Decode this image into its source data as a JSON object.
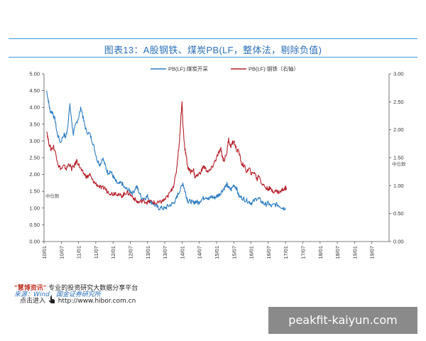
{
  "title": "图表13：A股钢铁、煤炭PB(LF，整体法，剔除负值)",
  "chart_data": {
    "type": "line",
    "title": "图表13：A股钢铁、煤炭PB(LF，整体法，剔除负值)",
    "x_labels": [
      "10/01",
      "10/07",
      "11/01",
      "11/07",
      "12/01",
      "12/07",
      "13/01",
      "13/07",
      "14/01",
      "14/07",
      "15/01",
      "15/07",
      "16/01",
      "16/07",
      "17/01",
      "17/07",
      "18/01",
      "18/07",
      "19/01",
      "19/07"
    ],
    "y_left": {
      "range": [
        0,
        5
      ],
      "ticks": [
        "0.00",
        "0.50",
        "1.00",
        "1.50",
        "2.00",
        "2.50",
        "3.00",
        "3.50",
        "4.00",
        "4.50",
        "5.00"
      ]
    },
    "y_right": {
      "range": [
        0,
        3
      ],
      "ticks": [
        "0.00",
        "0.50",
        "1.00",
        "1.50",
        "2.00",
        "2.50",
        "3.00"
      ]
    },
    "annotations": [
      "中位数",
      "中位数"
    ],
    "series": [
      {
        "name": "PB(LF):煤炭开采",
        "axis": "left",
        "color": "#2b7bbf",
        "points": [
          [
            0,
            4.5
          ],
          [
            0.1,
            4.2
          ],
          [
            0.2,
            3.9
          ],
          [
            0.35,
            3.85
          ],
          [
            0.5,
            3.6
          ],
          [
            0.6,
            3.25
          ],
          [
            0.8,
            2.95
          ],
          [
            1.0,
            3.2
          ],
          [
            1.1,
            3.1
          ],
          [
            1.2,
            3.35
          ],
          [
            1.35,
            4.05
          ],
          [
            1.45,
            3.6
          ],
          [
            1.55,
            3.2
          ],
          [
            1.7,
            3.5
          ],
          [
            1.85,
            3.7
          ],
          [
            2.0,
            4.0
          ],
          [
            2.15,
            3.6
          ],
          [
            2.3,
            3.3
          ],
          [
            2.5,
            3.2
          ],
          [
            2.65,
            3.0
          ],
          [
            2.8,
            2.7
          ],
          [
            2.95,
            2.4
          ],
          [
            3.1,
            2.3
          ],
          [
            3.25,
            2.5
          ],
          [
            3.4,
            2.25
          ],
          [
            3.55,
            2.05
          ],
          [
            3.7,
            2.1
          ],
          [
            3.85,
            1.95
          ],
          [
            4.0,
            1.8
          ],
          [
            4.15,
            1.7
          ],
          [
            4.35,
            1.75
          ],
          [
            4.5,
            1.6
          ],
          [
            4.7,
            1.55
          ],
          [
            4.85,
            1.5
          ],
          [
            5.0,
            1.45
          ],
          [
            5.2,
            1.65
          ],
          [
            5.3,
            1.55
          ],
          [
            5.5,
            1.3
          ],
          [
            5.7,
            1.3
          ],
          [
            5.85,
            1.35
          ],
          [
            6.0,
            1.2
          ],
          [
            6.15,
            1.15
          ],
          [
            6.35,
            1.05
          ],
          [
            6.5,
            1.0
          ],
          [
            6.7,
            1.0
          ],
          [
            6.85,
            0.98
          ],
          [
            7.0,
            1.05
          ],
          [
            7.2,
            1.1
          ],
          [
            7.35,
            1.15
          ],
          [
            7.5,
            1.25
          ],
          [
            7.6,
            1.4
          ],
          [
            7.75,
            1.55
          ],
          [
            7.9,
            1.75
          ],
          [
            8.0,
            1.55
          ],
          [
            8.1,
            1.35
          ],
          [
            8.2,
            1.2
          ],
          [
            8.35,
            1.2
          ],
          [
            8.5,
            1.15
          ],
          [
            8.65,
            1.2
          ],
          [
            8.8,
            1.15
          ],
          [
            8.95,
            1.25
          ],
          [
            9.1,
            1.3
          ],
          [
            9.25,
            1.35
          ],
          [
            9.4,
            1.25
          ],
          [
            9.55,
            1.35
          ],
          [
            9.7,
            1.3
          ],
          [
            9.85,
            1.35
          ],
          [
            10.0,
            1.4
          ],
          [
            10.15,
            1.5
          ],
          [
            10.3,
            1.6
          ],
          [
            10.45,
            1.7
          ],
          [
            10.55,
            1.6
          ],
          [
            10.7,
            1.55
          ],
          [
            10.85,
            1.7
          ],
          [
            11.0,
            1.6
          ],
          [
            11.15,
            1.35
          ],
          [
            11.35,
            1.3
          ],
          [
            11.5,
            1.25
          ],
          [
            11.7,
            1.2
          ],
          [
            11.85,
            1.15
          ],
          [
            12.0,
            1.2
          ],
          [
            12.2,
            1.3
          ],
          [
            12.35,
            1.25
          ],
          [
            12.55,
            1.15
          ],
          [
            12.7,
            1.1
          ],
          [
            12.85,
            1.15
          ],
          [
            13.0,
            1.05
          ],
          [
            13.2,
            1.1
          ],
          [
            13.4,
            1.1
          ],
          [
            13.55,
            1.05
          ],
          [
            13.7,
            1.0
          ],
          [
            13.85,
            1.0
          ]
        ]
      },
      {
        "name": "PB(LF):钢铁（右轴）",
        "axis": "right",
        "color": "#b3202a",
        "points": [
          [
            0,
            2.0
          ],
          [
            0.1,
            1.8
          ],
          [
            0.25,
            1.65
          ],
          [
            0.4,
            1.7
          ],
          [
            0.55,
            1.55
          ],
          [
            0.7,
            1.35
          ],
          [
            0.85,
            1.3
          ],
          [
            1.0,
            1.35
          ],
          [
            1.15,
            1.3
          ],
          [
            1.3,
            1.4
          ],
          [
            1.45,
            1.3
          ],
          [
            1.6,
            1.35
          ],
          [
            1.75,
            1.45
          ],
          [
            1.9,
            1.35
          ],
          [
            2.05,
            1.25
          ],
          [
            2.2,
            1.2
          ],
          [
            2.35,
            1.15
          ],
          [
            2.5,
            1.2
          ],
          [
            2.65,
            1.1
          ],
          [
            2.8,
            1.05
          ],
          [
            3.0,
            1.0
          ],
          [
            3.2,
            0.95
          ],
          [
            3.35,
            0.97
          ],
          [
            3.5,
            0.9
          ],
          [
            3.7,
            0.87
          ],
          [
            3.85,
            0.85
          ],
          [
            4.0,
            0.88
          ],
          [
            4.15,
            0.83
          ],
          [
            4.35,
            0.82
          ],
          [
            4.5,
            0.85
          ],
          [
            4.65,
            0.88
          ],
          [
            4.8,
            0.85
          ],
          [
            5.0,
            0.8
          ],
          [
            5.2,
            0.72
          ],
          [
            5.35,
            0.7
          ],
          [
            5.55,
            0.73
          ],
          [
            5.7,
            0.72
          ],
          [
            5.85,
            0.7
          ],
          [
            6.0,
            0.72
          ],
          [
            6.2,
            0.7
          ],
          [
            6.35,
            0.68
          ],
          [
            6.55,
            0.7
          ],
          [
            6.7,
            0.72
          ],
          [
            6.85,
            0.75
          ],
          [
            7.0,
            0.8
          ],
          [
            7.2,
            0.9
          ],
          [
            7.35,
            1.0
          ],
          [
            7.5,
            1.2
          ],
          [
            7.6,
            1.5
          ],
          [
            7.7,
            1.8
          ],
          [
            7.8,
            2.3
          ],
          [
            7.85,
            2.5
          ],
          [
            7.9,
            2.1
          ],
          [
            8.0,
            1.7
          ],
          [
            8.1,
            1.5
          ],
          [
            8.2,
            1.3
          ],
          [
            8.35,
            1.25
          ],
          [
            8.5,
            1.3
          ],
          [
            8.6,
            1.15
          ],
          [
            8.8,
            1.2
          ],
          [
            8.95,
            1.25
          ],
          [
            9.1,
            1.35
          ],
          [
            9.25,
            1.28
          ],
          [
            9.4,
            1.25
          ],
          [
            9.55,
            1.3
          ],
          [
            9.7,
            1.4
          ],
          [
            9.85,
            1.5
          ],
          [
            10.0,
            1.6
          ],
          [
            10.1,
            1.65
          ],
          [
            10.2,
            1.5
          ],
          [
            10.3,
            1.45
          ],
          [
            10.45,
            1.6
          ],
          [
            10.55,
            1.85
          ],
          [
            10.65,
            1.7
          ],
          [
            10.75,
            1.75
          ],
          [
            10.85,
            1.8
          ],
          [
            11.0,
            1.65
          ],
          [
            11.15,
            1.6
          ],
          [
            11.3,
            1.4
          ],
          [
            11.45,
            1.35
          ],
          [
            11.6,
            1.25
          ],
          [
            11.75,
            1.3
          ],
          [
            11.9,
            1.2
          ],
          [
            12.05,
            1.25
          ],
          [
            12.2,
            1.1
          ],
          [
            12.3,
            1.2
          ],
          [
            12.45,
            1.05
          ],
          [
            12.6,
            1.0
          ],
          [
            12.75,
            0.95
          ],
          [
            12.9,
            0.95
          ],
          [
            13.05,
            0.92
          ],
          [
            13.2,
            0.9
          ],
          [
            13.35,
            0.9
          ],
          [
            13.5,
            0.88
          ],
          [
            13.65,
            0.92
          ],
          [
            13.8,
            0.95
          ],
          [
            13.9,
            0.97
          ]
        ]
      }
    ]
  },
  "footer": {
    "brand": "\"慧博资讯\"",
    "tagline": " 专业的投资研究大数据分享平台",
    "source_label": "来源：",
    "source_text": "Wind，国金证券研究所",
    "enter_label": "点击进入",
    "url": "http://www.hibor.com.cn"
  },
  "watermark": "peakfit-kaiyun.com"
}
